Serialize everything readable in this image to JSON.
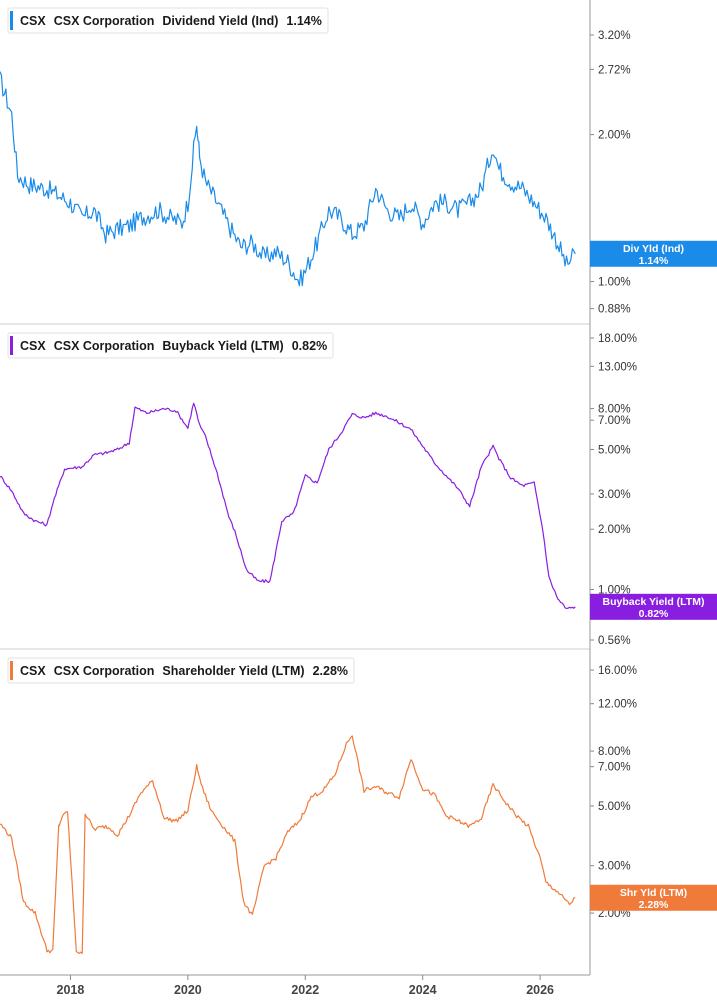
{
  "chart_data": [
    {
      "type": "line",
      "ticker": "CSX",
      "company": "CSX Corporation",
      "metric": "Dividend Yield (Ind)",
      "current_value": "1.14%",
      "tag_label": "Div Yld (Ind)",
      "tag_value": "1.14%",
      "color": "#1a8be8",
      "scale": "log",
      "ylim": [
        0.85,
        3.6
      ],
      "y_ticks": [
        "3.20%",
        "2.72%",
        "2.00%",
        "1.00%",
        "0.88%"
      ],
      "y_tick_values": [
        3.2,
        2.72,
        2.0,
        1.0,
        0.88
      ],
      "series": [
        {
          "x": [
            2016.8,
            2017.0,
            2017.1,
            2017.3,
            2017.6,
            2017.8,
            2018.0,
            2018.2,
            2018.4,
            2018.6,
            2018.8,
            2019.0,
            2019.2,
            2019.5,
            2019.7,
            2019.9,
            2020.0,
            2020.15,
            2020.2,
            2020.3,
            2020.5,
            2020.7,
            2020.9,
            2021.1,
            2021.3,
            2021.5,
            2021.7,
            2021.9,
            2022.0,
            2022.2,
            2022.4,
            2022.6,
            2022.8,
            2023.0,
            2023.2,
            2023.4,
            2023.6,
            2023.8,
            2024.0,
            2024.2,
            2024.4,
            2024.6,
            2024.8,
            2025.0,
            2025.2,
            2025.3,
            2025.5,
            2025.7,
            2025.9,
            2026.1,
            2026.3,
            2026.45,
            2026.6
          ],
          "y": [
            2.6,
            2.2,
            1.65,
            1.58,
            1.55,
            1.5,
            1.45,
            1.35,
            1.4,
            1.25,
            1.28,
            1.3,
            1.35,
            1.4,
            1.35,
            1.32,
            1.45,
            2.1,
            1.8,
            1.6,
            1.45,
            1.3,
            1.18,
            1.2,
            1.12,
            1.15,
            1.1,
            1.0,
            1.05,
            1.2,
            1.4,
            1.35,
            1.25,
            1.3,
            1.55,
            1.4,
            1.35,
            1.45,
            1.32,
            1.45,
            1.45,
            1.4,
            1.45,
            1.55,
            1.9,
            1.7,
            1.6,
            1.55,
            1.45,
            1.35,
            1.2,
            1.08,
            1.14
          ]
        }
      ]
    },
    {
      "type": "line",
      "ticker": "CSX",
      "company": "CSX Corporation",
      "metric": "Buyback Yield (LTM)",
      "current_value": "0.82%",
      "tag_label": "Buyback Yield (LTM)",
      "tag_value": "0.82%",
      "color": "#8a1ee0",
      "scale": "log",
      "ylim": [
        0.56,
        18
      ],
      "y_ticks": [
        "18.00%",
        "13.00%",
        "8.00%",
        "7.00%",
        "5.00%",
        "3.00%",
        "2.00%",
        "1.00%",
        "0.56%"
      ],
      "y_tick_values": [
        18,
        13,
        8,
        7,
        5,
        3,
        2,
        1,
        0.56
      ],
      "series": [
        {
          "x": [
            2016.8,
            2017.0,
            2017.2,
            2017.4,
            2017.6,
            2017.7,
            2017.9,
            2018.2,
            2018.4,
            2018.6,
            2018.8,
            2019.0,
            2019.1,
            2019.3,
            2019.6,
            2019.8,
            2020.0,
            2020.1,
            2020.2,
            2020.3,
            2020.5,
            2020.7,
            2020.8,
            2021.0,
            2021.2,
            2021.4,
            2021.6,
            2021.8,
            2022.0,
            2022.2,
            2022.4,
            2022.6,
            2022.8,
            2023.0,
            2023.2,
            2023.4,
            2023.6,
            2023.8,
            2024.0,
            2024.2,
            2024.4,
            2024.6,
            2024.8,
            2025.0,
            2025.2,
            2025.3,
            2025.5,
            2025.7,
            2025.9,
            2026.05,
            2026.15,
            2026.3,
            2026.45,
            2026.6
          ],
          "y": [
            3.7,
            3.1,
            2.4,
            2.2,
            2.1,
            2.7,
            4.0,
            4.1,
            4.7,
            4.8,
            5.0,
            5.4,
            8.1,
            7.6,
            8.0,
            7.8,
            6.4,
            8.6,
            6.6,
            5.8,
            3.8,
            2.3,
            1.95,
            1.25,
            1.1,
            1.1,
            2.2,
            2.4,
            3.7,
            3.4,
            5.0,
            6.0,
            7.5,
            7.2,
            7.6,
            7.3,
            6.8,
            6.3,
            5.2,
            4.3,
            3.7,
            3.2,
            2.6,
            4.1,
            5.2,
            4.5,
            3.6,
            3.3,
            3.4,
            1.95,
            1.15,
            0.9,
            0.8,
            0.82
          ]
        }
      ]
    },
    {
      "type": "line",
      "ticker": "CSX",
      "company": "CSX Corporation",
      "metric": "Shareholder Yield (LTM)",
      "current_value": "2.28%",
      "tag_label": "Shr Yld (LTM)",
      "tag_value": "2.28%",
      "color": "#f07a3a",
      "scale": "log",
      "ylim": [
        1.25,
        17
      ],
      "y_ticks": [
        "16.00%",
        "12.00%",
        "8.00%",
        "7.00%",
        "5.00%",
        "3.00%",
        "2.00%"
      ],
      "y_tick_values": [
        16,
        12,
        8,
        7,
        5,
        3,
        2
      ],
      "series": [
        {
          "x": [
            2016.8,
            2017.0,
            2017.2,
            2017.4,
            2017.6,
            2017.7,
            2017.8,
            2017.85,
            2017.95,
            2018.1,
            2018.2,
            2018.25,
            2018.4,
            2018.6,
            2018.7,
            2018.8,
            2019.0,
            2019.2,
            2019.4,
            2019.6,
            2019.8,
            2020.0,
            2020.15,
            2020.25,
            2020.4,
            2020.6,
            2020.8,
            2020.95,
            2021.1,
            2021.3,
            2021.5,
            2021.7,
            2021.9,
            2022.1,
            2022.3,
            2022.5,
            2022.7,
            2022.8,
            2023.0,
            2023.2,
            2023.4,
            2023.6,
            2023.8,
            2024.0,
            2024.2,
            2024.4,
            2024.6,
            2024.8,
            2025.0,
            2025.2,
            2025.4,
            2025.6,
            2025.8,
            2026.0,
            2026.1,
            2026.3,
            2026.5,
            2026.6
          ],
          "y": [
            4.3,
            3.8,
            2.2,
            2.0,
            1.45,
            1.45,
            4.2,
            4.5,
            4.8,
            1.45,
            1.4,
            4.7,
            4.1,
            4.2,
            4.1,
            3.9,
            4.6,
            5.6,
            6.2,
            4.5,
            4.4,
            4.8,
            7.0,
            5.8,
            4.8,
            4.2,
            3.7,
            2.2,
            1.95,
            3.0,
            3.2,
            4.0,
            4.4,
            5.4,
            5.7,
            6.5,
            8.5,
            9.2,
            5.7,
            5.9,
            5.6,
            5.4,
            7.5,
            5.8,
            5.5,
            4.6,
            4.4,
            4.2,
            4.5,
            6.0,
            5.2,
            4.6,
            4.2,
            3.2,
            2.6,
            2.4,
            2.15,
            2.28
          ]
        }
      ]
    }
  ],
  "x_axis": {
    "ticks": [
      "2018",
      "2020",
      "2022",
      "2024",
      "2026"
    ],
    "tick_values": [
      2018,
      2020,
      2022,
      2024,
      2026
    ],
    "xlim": [
      2016.8,
      2026.85
    ]
  }
}
